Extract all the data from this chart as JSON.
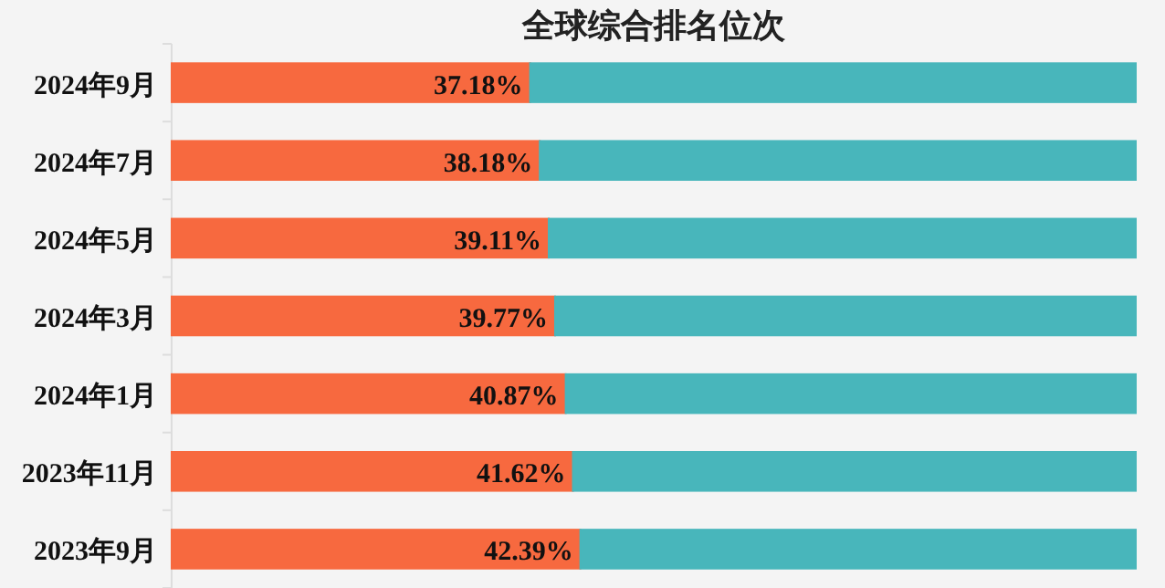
{
  "chart_data": {
    "type": "bar",
    "orientation": "horizontal",
    "stacked": true,
    "title": "全球综合排名位次",
    "categories": [
      "2024年9月",
      "2024年7月",
      "2024年5月",
      "2024年3月",
      "2024年1月",
      "2023年11月",
      "2023年9月"
    ],
    "xlim": [
      0,
      100
    ],
    "series": [
      {
        "color": "#f7693f",
        "values": [
          37.18,
          38.18,
          39.11,
          39.77,
          40.87,
          41.62,
          42.39
        ],
        "value_labels": [
          "37.18%",
          "38.18%",
          "39.11%",
          "39.77%",
          "40.87%",
          "41.62%",
          "42.39%"
        ]
      },
      {
        "color": "#48b6bb",
        "values": [
          62.82,
          61.82,
          60.89,
          60.23,
          59.13,
          58.38,
          57.61
        ]
      }
    ]
  }
}
